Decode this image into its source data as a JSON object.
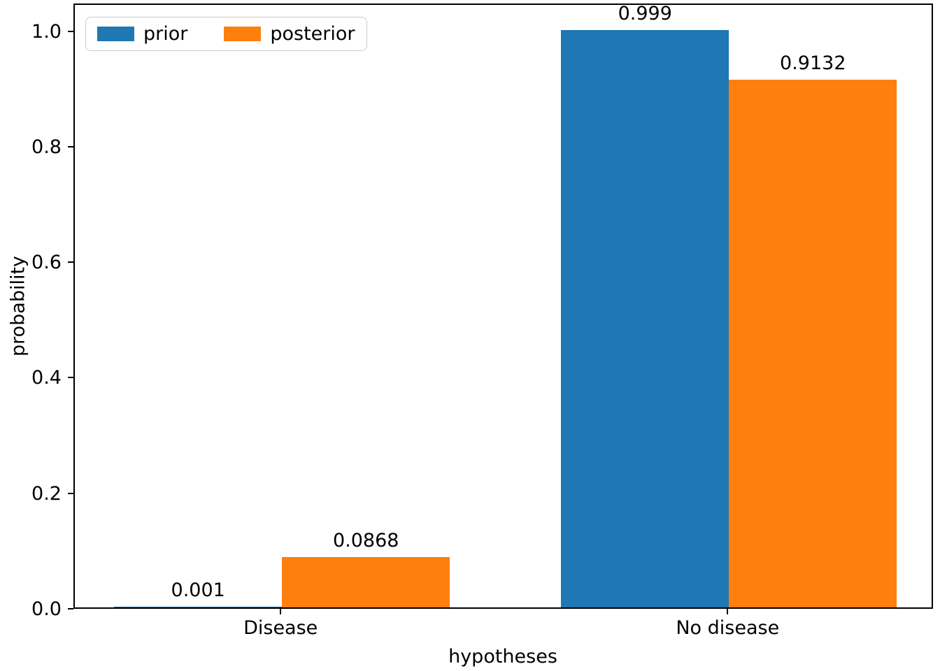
{
  "chart_data": {
    "type": "bar",
    "categories": [
      "Disease",
      "No disease"
    ],
    "series": [
      {
        "name": "prior",
        "color": "#1f77b4",
        "values": [
          0.001,
          0.999
        ],
        "value_labels": [
          "0.001",
          "0.999"
        ]
      },
      {
        "name": "posterior",
        "color": "#ff7f0e",
        "values": [
          0.0868,
          0.9132
        ],
        "value_labels": [
          "0.0868",
          "0.9132"
        ]
      }
    ],
    "title": "",
    "xlabel": "hypotheses",
    "ylabel": "probability",
    "yticks": [
      0.0,
      0.2,
      0.4,
      0.6,
      0.8,
      1.0
    ],
    "ytick_labels": [
      "0.0",
      "0.2",
      "0.4",
      "0.6",
      "0.8",
      "1.0"
    ],
    "ylim": [
      0,
      1.048
    ],
    "grid": false,
    "bar_value_labels": true,
    "layout": {
      "legend_position": "upper left",
      "group_center_fractions": [
        0.241,
        0.761
      ],
      "bar_width_fraction": 0.1953
    },
    "colors": {
      "spine": "#000000",
      "text": "#000000",
      "background": "#ffffff",
      "legend_border": "#cccccc"
    }
  }
}
